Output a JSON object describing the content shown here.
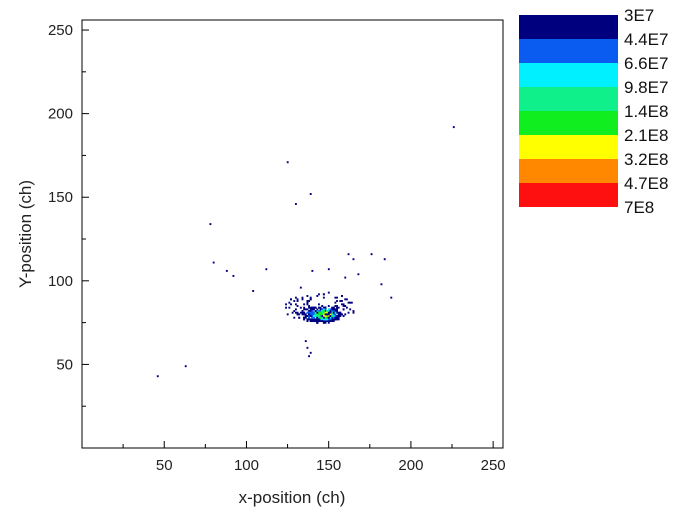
{
  "chart_data": {
    "type": "heatmap",
    "xlabel": "x-position (ch)",
    "ylabel": "Y-position (ch)",
    "xlim": [
      0,
      256
    ],
    "ylim": [
      0,
      256
    ],
    "x_ticks": [
      50,
      100,
      150,
      200,
      250
    ],
    "y_ticks": [
      50,
      100,
      150,
      200,
      250
    ],
    "grid": false,
    "legend_placement": "right",
    "colorbar": {
      "levels": [
        "3E7",
        "4.4E7",
        "6.6E7",
        "9.8E7",
        "1.4E8",
        "2.1E8",
        "3.2E8",
        "4.7E8",
        "7E8"
      ],
      "colors": [
        "#00007f",
        "#0a5cf0",
        "#00f0ff",
        "#10f08a",
        "#10ee20",
        "#ffff00",
        "#ff8800",
        "#ff1010"
      ]
    },
    "points": [
      {
        "x": 46,
        "y": 43,
        "level": 0
      },
      {
        "x": 63,
        "y": 49,
        "level": 0
      },
      {
        "x": 78,
        "y": 134,
        "level": 0
      },
      {
        "x": 80,
        "y": 111,
        "level": 0
      },
      {
        "x": 88,
        "y": 106,
        "level": 0
      },
      {
        "x": 92,
        "y": 103,
        "level": 0
      },
      {
        "x": 104,
        "y": 94,
        "level": 0
      },
      {
        "x": 112,
        "y": 107,
        "level": 0
      },
      {
        "x": 125,
        "y": 171,
        "level": 0
      },
      {
        "x": 130,
        "y": 146,
        "level": 0
      },
      {
        "x": 139,
        "y": 152,
        "level": 0
      },
      {
        "x": 140,
        "y": 106,
        "level": 0
      },
      {
        "x": 150,
        "y": 107,
        "level": 0
      },
      {
        "x": 162,
        "y": 116,
        "level": 0
      },
      {
        "x": 165,
        "y": 113,
        "level": 0
      },
      {
        "x": 168,
        "y": 104,
        "level": 0
      },
      {
        "x": 176,
        "y": 116,
        "level": 0
      },
      {
        "x": 184,
        "y": 113,
        "level": 0
      },
      {
        "x": 182,
        "y": 98,
        "level": 0
      },
      {
        "x": 188,
        "y": 90,
        "level": 0
      },
      {
        "x": 226,
        "y": 192,
        "level": 0
      },
      {
        "x": 160,
        "y": 102,
        "level": 0
      },
      {
        "x": 133,
        "y": 96,
        "level": 0
      },
      {
        "x": 137,
        "y": 60,
        "level": 0
      },
      {
        "x": 139,
        "y": 57,
        "level": 0
      },
      {
        "x": 138,
        "y": 55,
        "level": 0
      },
      {
        "x": 136,
        "y": 64,
        "level": 0
      }
    ],
    "clusters": [
      {
        "cx": 145,
        "cy": 80,
        "rx": 13,
        "ry": 5,
        "count": 220,
        "level": 0
      },
      {
        "cx": 146,
        "cy": 80,
        "rx": 9,
        "ry": 3.5,
        "count": 120,
        "level": 1
      },
      {
        "cx": 147,
        "cy": 80,
        "rx": 7,
        "ry": 3,
        "count": 70,
        "level": 2
      },
      {
        "cx": 147,
        "cy": 80,
        "rx": 6,
        "ry": 2.5,
        "count": 55,
        "level": 3
      },
      {
        "cx": 147,
        "cy": 80,
        "rx": 4.5,
        "ry": 2,
        "count": 30,
        "level": 4
      },
      {
        "cx": 148,
        "cy": 80,
        "rx": 3.5,
        "ry": 1.5,
        "count": 14,
        "level": 5
      },
      {
        "cx": 145,
        "cy": 84,
        "rx": 22,
        "ry": 9,
        "count": 120,
        "level": 0
      }
    ]
  }
}
